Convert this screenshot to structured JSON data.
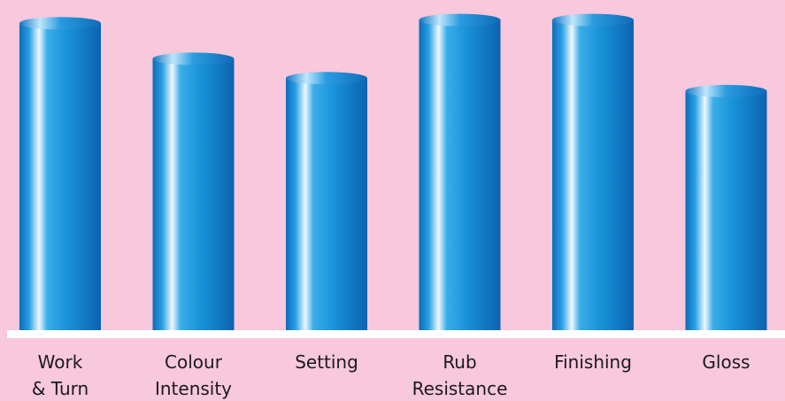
{
  "chart_data": {
    "type": "bar",
    "title": "",
    "xlabel": "",
    "ylabel": "",
    "categories": [
      [
        "Work",
        "& Turn"
      ],
      [
        "Colour",
        "Intensity"
      ],
      [
        "Setting"
      ],
      [
        "Rub",
        "Resistance"
      ],
      [
        "Finishing"
      ],
      [
        "Gloss"
      ]
    ],
    "values": [
      95,
      84,
      78,
      96,
      96,
      74
    ],
    "ylim": [
      0,
      100
    ],
    "grid": false,
    "legend": "none",
    "colors": {
      "background": "#f8c8dc",
      "bar_dark": "#0a6fc0",
      "bar_mid": "#1a9ae0",
      "bar_highlight": "#e8f6ff",
      "baseline": "#ffffff"
    }
  }
}
